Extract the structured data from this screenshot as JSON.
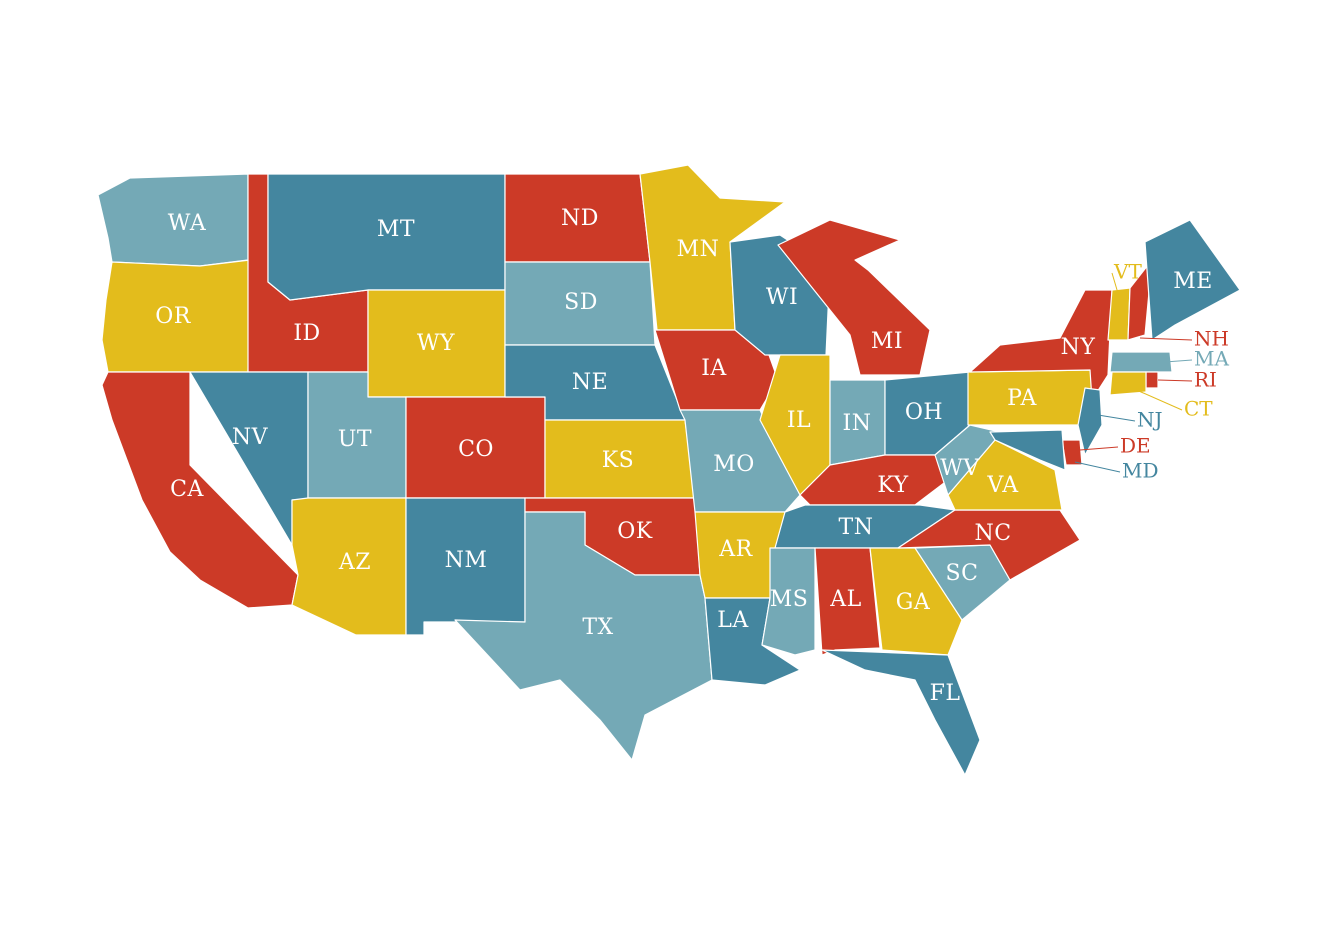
{
  "palette": {
    "red": "#cc3a27",
    "yellow": "#e3bc1c",
    "dark_blue": "#44869f",
    "light_blue": "#74a9b6",
    "label": "#ffffff",
    "background": "#ffffff"
  },
  "states": [
    {
      "abbr": "WA",
      "color": "light_blue"
    },
    {
      "abbr": "OR",
      "color": "yellow"
    },
    {
      "abbr": "CA",
      "color": "red"
    },
    {
      "abbr": "ID",
      "color": "red"
    },
    {
      "abbr": "NV",
      "color": "dark_blue"
    },
    {
      "abbr": "MT",
      "color": "dark_blue"
    },
    {
      "abbr": "WY",
      "color": "yellow"
    },
    {
      "abbr": "UT",
      "color": "light_blue"
    },
    {
      "abbr": "AZ",
      "color": "yellow"
    },
    {
      "abbr": "CO",
      "color": "red"
    },
    {
      "abbr": "NM",
      "color": "dark_blue"
    },
    {
      "abbr": "ND",
      "color": "red"
    },
    {
      "abbr": "SD",
      "color": "light_blue"
    },
    {
      "abbr": "NE",
      "color": "dark_blue"
    },
    {
      "abbr": "KS",
      "color": "yellow"
    },
    {
      "abbr": "OK",
      "color": "red"
    },
    {
      "abbr": "TX",
      "color": "light_blue"
    },
    {
      "abbr": "MN",
      "color": "yellow"
    },
    {
      "abbr": "IA",
      "color": "red"
    },
    {
      "abbr": "MO",
      "color": "light_blue"
    },
    {
      "abbr": "AR",
      "color": "yellow"
    },
    {
      "abbr": "LA",
      "color": "dark_blue"
    },
    {
      "abbr": "WI",
      "color": "dark_blue"
    },
    {
      "abbr": "IL",
      "color": "yellow"
    },
    {
      "abbr": "MI",
      "color": "red"
    },
    {
      "abbr": "IN",
      "color": "light_blue"
    },
    {
      "abbr": "OH",
      "color": "dark_blue"
    },
    {
      "abbr": "KY",
      "color": "red"
    },
    {
      "abbr": "TN",
      "color": "dark_blue"
    },
    {
      "abbr": "MS",
      "color": "light_blue"
    },
    {
      "abbr": "AL",
      "color": "red"
    },
    {
      "abbr": "GA",
      "color": "yellow"
    },
    {
      "abbr": "FL",
      "color": "dark_blue"
    },
    {
      "abbr": "SC",
      "color": "light_blue"
    },
    {
      "abbr": "NC",
      "color": "red"
    },
    {
      "abbr": "VA",
      "color": "yellow"
    },
    {
      "abbr": "WV",
      "color": "light_blue"
    },
    {
      "abbr": "PA",
      "color": "yellow"
    },
    {
      "abbr": "NY",
      "color": "red"
    },
    {
      "abbr": "VT",
      "color": "yellow"
    },
    {
      "abbr": "NH",
      "color": "red"
    },
    {
      "abbr": "ME",
      "color": "dark_blue"
    },
    {
      "abbr": "MA",
      "color": "light_blue"
    },
    {
      "abbr": "RI",
      "color": "red"
    },
    {
      "abbr": "CT",
      "color": "yellow"
    },
    {
      "abbr": "NJ",
      "color": "dark_blue"
    },
    {
      "abbr": "DE",
      "color": "red"
    },
    {
      "abbr": "MD",
      "color": "dark_blue"
    }
  ]
}
